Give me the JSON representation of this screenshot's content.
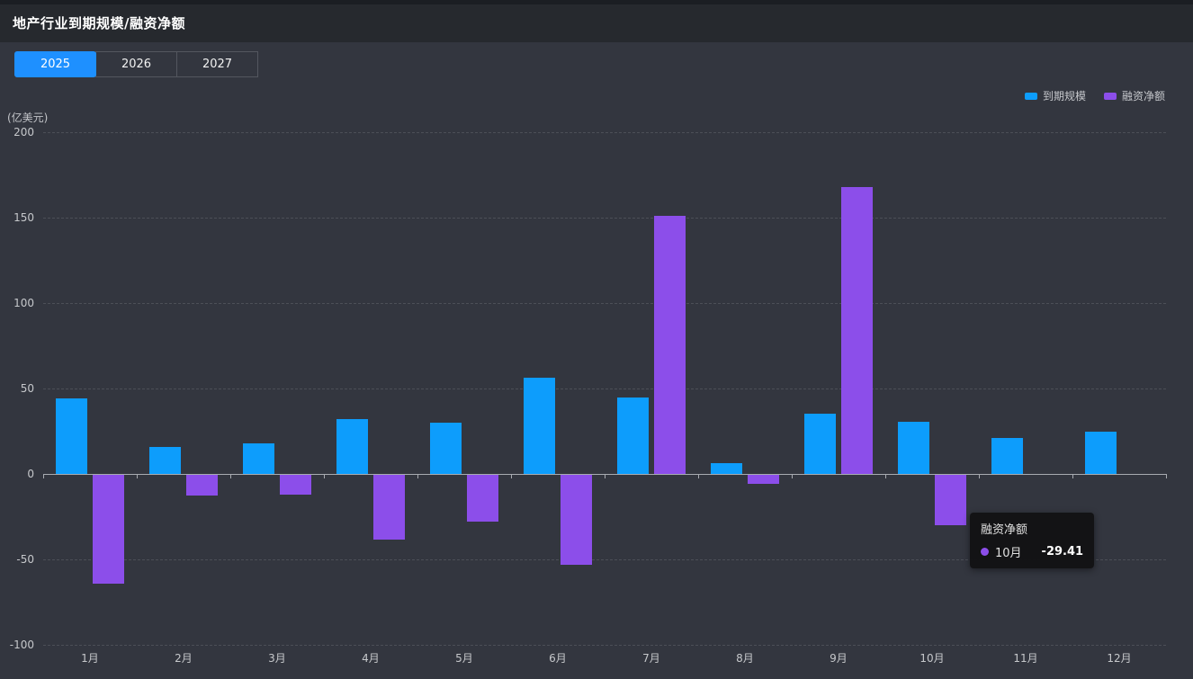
{
  "header": {
    "title": "地产行业到期规模/融资净额"
  },
  "tabs": [
    {
      "label": "2025",
      "active": true
    },
    {
      "label": "2026",
      "active": false
    },
    {
      "label": "2027",
      "active": false
    }
  ],
  "colors": {
    "accent_blue": "#0d9dfc",
    "accent_purple": "#8c4eea",
    "tab_active_blue": "#1e90ff",
    "background": "#33363f",
    "header_background": "#26292e",
    "tooltip_background": "#141416"
  },
  "chart_data": {
    "type": "bar",
    "title": "地产行业到期规模/融资净额",
    "yname": "(亿美元)",
    "ylim": [
      -100,
      200
    ],
    "yticks": [
      200,
      150,
      100,
      50,
      0,
      -50,
      -100
    ],
    "grid": "dashed horizontal",
    "legend_position": "top-right",
    "categories": [
      "1月",
      "2月",
      "3月",
      "4月",
      "5月",
      "6月",
      "7月",
      "8月",
      "9月",
      "10月",
      "11月",
      "12月"
    ],
    "series": [
      {
        "name": "到期规模",
        "key": "maturity-scale",
        "color": "#0d9dfc",
        "values": [
          44.2,
          15.8,
          18.1,
          32.3,
          30.2,
          56.4,
          44.5,
          6.5,
          35.2,
          30.6,
          21.3,
          24.8
        ]
      },
      {
        "name": "融资净额",
        "key": "net-financing",
        "color": "#8c4eea",
        "values": [
          -63.9,
          -12.3,
          -11.5,
          -37.8,
          -27.3,
          -52.4,
          151.2,
          -5.2,
          167.8,
          -29.41,
          0,
          0
        ]
      }
    ]
  },
  "tooltip": {
    "series_name": "融资净额",
    "category": "10月",
    "value": "-29.41",
    "color": "#8c4eea"
  }
}
